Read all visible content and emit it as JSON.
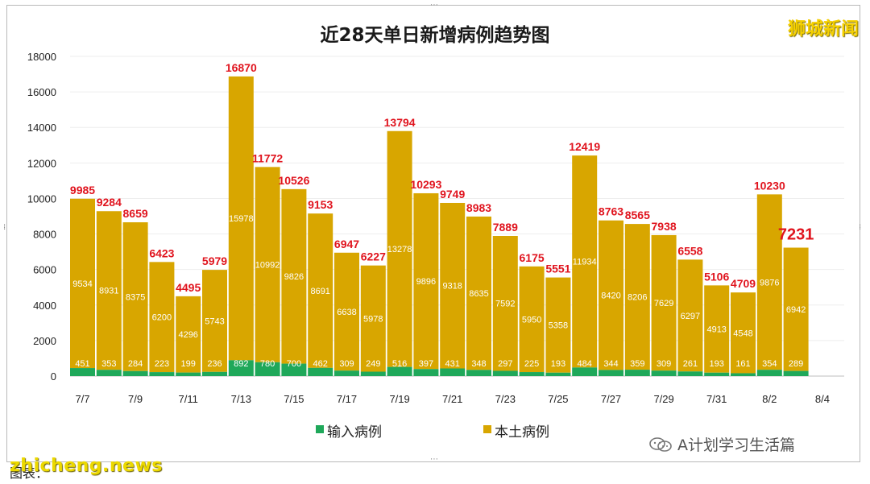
{
  "header": {
    "title": "近28天单日新增病例趋势图",
    "brand": "狮城新闻"
  },
  "footer": {
    "source": "图表：",
    "site": "zhicheng.news",
    "wechat": "A计划学习生活篇"
  },
  "colors": {
    "imported": "#1fa85a",
    "local": "#d8a600",
    "total_label": "#e0141e",
    "inner_label": "#ffffff",
    "axis_text": "#222222",
    "grid": "#eeeeee"
  },
  "chart_data": {
    "type": "bar",
    "stacked": true,
    "title": "近28天单日新增病例趋势图",
    "categories": [
      "7/7",
      "7/8",
      "7/9",
      "7/10",
      "7/11",
      "7/12",
      "7/13",
      "7/14",
      "7/15",
      "7/16",
      "7/17",
      "7/18",
      "7/19",
      "7/20",
      "7/21",
      "7/22",
      "7/23",
      "7/24",
      "7/25",
      "7/26",
      "7/27",
      "7/28",
      "7/29",
      "7/30",
      "7/31",
      "8/1",
      "8/2",
      "8/3"
    ],
    "x_tick_labels": [
      "7/7",
      "7/9",
      "7/11",
      "7/13",
      "7/15",
      "7/17",
      "7/19",
      "7/21",
      "7/23",
      "7/25",
      "7/27",
      "7/29",
      "7/31",
      "8/2",
      "8/4"
    ],
    "series": [
      {
        "name": "输入病例",
        "values": [
          451,
          353,
          284,
          223,
          199,
          236,
          892,
          780,
          700,
          462,
          309,
          249,
          516,
          397,
          431,
          348,
          297,
          225,
          193,
          484,
          344,
          359,
          309,
          261,
          193,
          161,
          354,
          289
        ]
      },
      {
        "name": "本土病例",
        "values": [
          9534,
          8931,
          8375,
          6200,
          4296,
          5743,
          15978,
          10992,
          9826,
          8691,
          6638,
          5978,
          13278,
          9896,
          9318,
          8635,
          7592,
          5950,
          5358,
          11934,
          8420,
          8206,
          7629,
          6297,
          4913,
          4548,
          9876,
          6942
        ]
      }
    ],
    "totals": [
      9985,
      9284,
      8659,
      6423,
      4495,
      5979,
      16870,
      11772,
      10526,
      9153,
      6947,
      6227,
      13794,
      10293,
      9749,
      8983,
      7889,
      6175,
      5551,
      12419,
      8763,
      8565,
      7938,
      6558,
      5106,
      4709,
      10230,
      7231
    ],
    "ylim": [
      0,
      18000
    ],
    "y_ticks": [
      0,
      2000,
      4000,
      6000,
      8000,
      10000,
      12000,
      14000,
      16000,
      18000
    ],
    "grid": true,
    "legend_position": "bottom"
  }
}
